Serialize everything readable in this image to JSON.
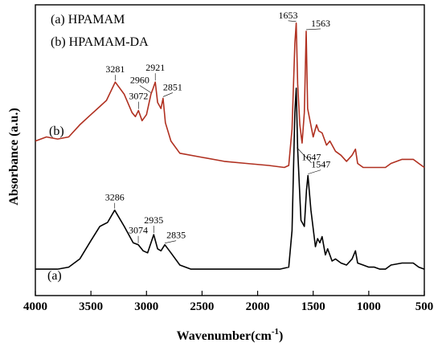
{
  "chart_data": {
    "type": "line",
    "xlabel": "Wavenumber(cm",
    "xlabel_superscript": "-1",
    "xlabel_close": ")",
    "ylabel": "Absorbance (a.u.)",
    "xlim": [
      4000,
      500
    ],
    "x_reversed": true,
    "xticks": [
      4000,
      3500,
      3000,
      2500,
      2000,
      1500,
      1000,
      500
    ],
    "y_ticks_shown": false,
    "legend_position": "top-left",
    "legend": [
      "(a) HPAMAM",
      "(b) HPAMAM-DA"
    ],
    "series": [
      {
        "name": "(a) HPAMAM",
        "label": "(a)",
        "color": "#000000",
        "points": [
          [
            4000,
            0.01
          ],
          [
            3800,
            0.01
          ],
          [
            3700,
            0.02
          ],
          [
            3600,
            0.06
          ],
          [
            3500,
            0.15
          ],
          [
            3420,
            0.22
          ],
          [
            3350,
            0.24
          ],
          [
            3286,
            0.3
          ],
          [
            3200,
            0.22
          ],
          [
            3120,
            0.14
          ],
          [
            3074,
            0.13
          ],
          [
            3030,
            0.1
          ],
          [
            2990,
            0.09
          ],
          [
            2935,
            0.18
          ],
          [
            2900,
            0.11
          ],
          [
            2870,
            0.1
          ],
          [
            2835,
            0.13
          ],
          [
            2780,
            0.09
          ],
          [
            2700,
            0.03
          ],
          [
            2600,
            0.01
          ],
          [
            2400,
            0.01
          ],
          [
            2200,
            0.01
          ],
          [
            2000,
            0.01
          ],
          [
            1800,
            0.01
          ],
          [
            1720,
            0.02
          ],
          [
            1690,
            0.2
          ],
          [
            1665,
            0.78
          ],
          [
            1653,
            0.9
          ],
          [
            1640,
            0.6
          ],
          [
            1610,
            0.25
          ],
          [
            1580,
            0.22
          ],
          [
            1560,
            0.4
          ],
          [
            1547,
            0.47
          ],
          [
            1520,
            0.3
          ],
          [
            1480,
            0.12
          ],
          [
            1460,
            0.16
          ],
          [
            1440,
            0.14
          ],
          [
            1420,
            0.17
          ],
          [
            1390,
            0.08
          ],
          [
            1370,
            0.11
          ],
          [
            1330,
            0.05
          ],
          [
            1300,
            0.06
          ],
          [
            1250,
            0.04
          ],
          [
            1200,
            0.03
          ],
          [
            1150,
            0.06
          ],
          [
            1120,
            0.1
          ],
          [
            1100,
            0.04
          ],
          [
            1050,
            0.03
          ],
          [
            1000,
            0.02
          ],
          [
            950,
            0.02
          ],
          [
            900,
            0.01
          ],
          [
            850,
            0.01
          ],
          [
            800,
            0.03
          ],
          [
            700,
            0.04
          ],
          [
            600,
            0.04
          ],
          [
            550,
            0.02
          ],
          [
            500,
            0.01
          ]
        ]
      },
      {
        "name": "(b) HPAMAM-DA",
        "label": "(b)",
        "color": "#b03020",
        "points": [
          [
            4000,
            0.64
          ],
          [
            3900,
            0.66
          ],
          [
            3800,
            0.65
          ],
          [
            3700,
            0.66
          ],
          [
            3600,
            0.72
          ],
          [
            3500,
            0.77
          ],
          [
            3420,
            0.81
          ],
          [
            3360,
            0.84
          ],
          [
            3281,
            0.93
          ],
          [
            3200,
            0.87
          ],
          [
            3130,
            0.78
          ],
          [
            3100,
            0.76
          ],
          [
            3072,
            0.79
          ],
          [
            3040,
            0.74
          ],
          [
            3000,
            0.77
          ],
          [
            2960,
            0.87
          ],
          [
            2940,
            0.9
          ],
          [
            2921,
            0.93
          ],
          [
            2900,
            0.83
          ],
          [
            2870,
            0.8
          ],
          [
            2851,
            0.85
          ],
          [
            2830,
            0.73
          ],
          [
            2780,
            0.64
          ],
          [
            2700,
            0.58
          ],
          [
            2500,
            0.56
          ],
          [
            2300,
            0.54
          ],
          [
            2100,
            0.53
          ],
          [
            1900,
            0.52
          ],
          [
            1760,
            0.51
          ],
          [
            1720,
            0.52
          ],
          [
            1690,
            0.7
          ],
          [
            1665,
            1.12
          ],
          [
            1653,
            1.22
          ],
          [
            1640,
            0.92
          ],
          [
            1620,
            0.72
          ],
          [
            1600,
            0.63
          ],
          [
            1580,
            0.78
          ],
          [
            1563,
            1.18
          ],
          [
            1550,
            0.8
          ],
          [
            1500,
            0.66
          ],
          [
            1470,
            0.72
          ],
          [
            1450,
            0.69
          ],
          [
            1420,
            0.68
          ],
          [
            1380,
            0.62
          ],
          [
            1350,
            0.64
          ],
          [
            1300,
            0.59
          ],
          [
            1250,
            0.57
          ],
          [
            1200,
            0.54
          ],
          [
            1150,
            0.57
          ],
          [
            1120,
            0.6
          ],
          [
            1100,
            0.53
          ],
          [
            1050,
            0.51
          ],
          [
            1000,
            0.51
          ],
          [
            950,
            0.51
          ],
          [
            900,
            0.51
          ],
          [
            850,
            0.51
          ],
          [
            800,
            0.53
          ],
          [
            700,
            0.55
          ],
          [
            600,
            0.55
          ],
          [
            550,
            0.53
          ],
          [
            500,
            0.51
          ]
        ]
      }
    ],
    "annotations": [
      {
        "text": "3286",
        "x": 3286,
        "y": 0.3,
        "series": 0
      },
      {
        "text": "3074",
        "x": 3074,
        "y": 0.13,
        "series": 0
      },
      {
        "text": "2935",
        "x": 2935,
        "y": 0.18,
        "series": 0
      },
      {
        "text": "2835",
        "x": 2835,
        "y": 0.13,
        "series": 0
      },
      {
        "text": "1547",
        "x": 1547,
        "y": 0.47,
        "series": 0
      },
      {
        "text": "1647",
        "x": 1647,
        "y": 0.6,
        "series": 1
      },
      {
        "text": "3281",
        "x": 3281,
        "y": 0.93,
        "series": 1
      },
      {
        "text": "3072",
        "x": 3072,
        "y": 0.79,
        "series": 1
      },
      {
        "text": "2960",
        "x": 2960,
        "y": 0.87,
        "series": 1
      },
      {
        "text": "2921",
        "x": 2921,
        "y": 0.93,
        "series": 1
      },
      {
        "text": "2851",
        "x": 2851,
        "y": 0.85,
        "series": 1
      },
      {
        "text": "1653",
        "x": 1653,
        "y": 1.22,
        "series": 1
      },
      {
        "text": "1563",
        "x": 1563,
        "y": 1.18,
        "series": 1
      }
    ]
  }
}
